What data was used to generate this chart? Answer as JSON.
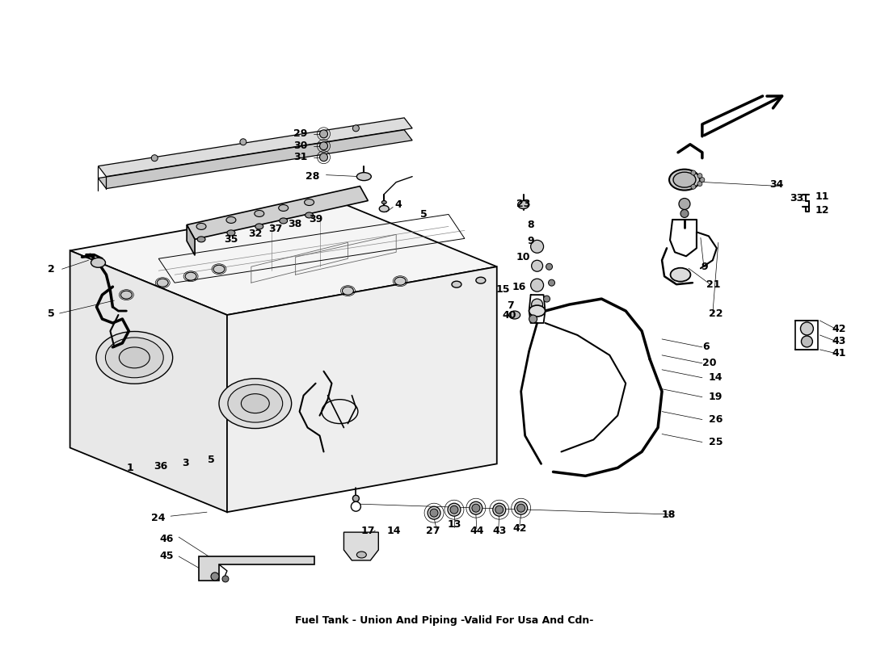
{
  "title": "Fuel Tank - Union And Piping -Valid For Usa And Cdn-",
  "bg_color": "#ffffff",
  "line_color": "#000000",
  "lw_main": 1.3,
  "lw_thin": 0.7,
  "lw_thick": 2.0,
  "fs_label": 9,
  "fs_title": 9
}
